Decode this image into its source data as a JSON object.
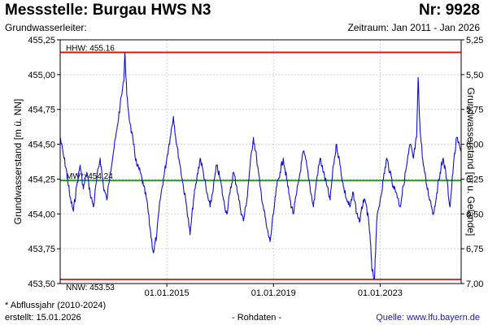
{
  "header": {
    "title": "Messstelle: Burgau HWS N3",
    "number": "Nr: 9928",
    "aquifer": "Grundwasserleiter:",
    "period": "Zeitraum: Jan 2011 - Jan 2026"
  },
  "footer": {
    "note": "* Abflussjahr (2010-2024)",
    "created": "erstellt:  15.01.2026",
    "raw": "- Rohdaten -",
    "source_label": "Quelle: ",
    "source_link": "www.lfu.bayern.de"
  },
  "colors": {
    "series": "#1010d0",
    "limits": "#e01010",
    "mean": "#10a010",
    "grid": "#d0d0d0"
  },
  "chart_data": {
    "type": "line",
    "ylabel": "Grundwasserstand [m ü. NN]",
    "y2label": "Grundwasserstand [m u. Gelände]",
    "ylim": [
      453.5,
      455.25
    ],
    "y_ticks": [
      "453,50",
      "453,75",
      "454,00",
      "454,25",
      "454,50",
      "454,75",
      "455,00",
      "455,25"
    ],
    "y2_ticks": [
      "7,00",
      "6,75",
      "6,50",
      "6,25",
      "6,00",
      "5,75",
      "5,50",
      "5,25"
    ],
    "x_ticks": [
      "01.01.2015",
      "01.01.2019",
      "01.01.2023"
    ],
    "xlim": [
      "2011-01-01",
      "2026-01-15"
    ],
    "grid": true,
    "hlines": [
      {
        "label": "HHW: 455.16",
        "value": 455.16,
        "kind": "limit"
      },
      {
        "label": "MW*: 454.24",
        "value": 454.24,
        "kind": "mean"
      },
      {
        "label": "NNW: 453.53",
        "value": 453.53,
        "kind": "limit"
      }
    ],
    "series": [
      {
        "x": [
          "2011-01-01",
          "2011-02-15",
          "2011-04-01",
          "2011-05-15",
          "2011-07-01",
          "2011-08-15",
          "2011-10-01",
          "2011-11-15",
          "2012-01-01",
          "2012-02-15",
          "2012-04-01",
          "2012-05-15",
          "2012-07-01",
          "2012-08-15",
          "2012-10-01",
          "2012-11-15",
          "2013-01-01",
          "2013-02-15",
          "2013-04-01",
          "2013-05-20",
          "2013-06-05",
          "2013-07-01",
          "2013-08-15",
          "2013-10-01",
          "2013-11-15",
          "2014-01-01",
          "2014-02-15",
          "2014-04-01",
          "2014-05-15",
          "2014-07-01",
          "2014-08-15",
          "2014-10-01",
          "2014-11-15",
          "2015-01-01",
          "2015-02-15",
          "2015-04-01",
          "2015-05-15",
          "2015-07-01",
          "2015-08-15",
          "2015-10-01",
          "2015-11-15",
          "2016-01-01",
          "2016-02-15",
          "2016-04-01",
          "2016-05-15",
          "2016-07-01",
          "2016-08-15",
          "2016-10-01",
          "2016-11-15",
          "2017-01-01",
          "2017-02-15",
          "2017-04-01",
          "2017-05-15",
          "2017-07-01",
          "2017-08-15",
          "2017-10-01",
          "2017-11-15",
          "2018-01-01",
          "2018-02-15",
          "2018-04-01",
          "2018-05-15",
          "2018-07-01",
          "2018-08-15",
          "2018-10-01",
          "2018-11-15",
          "2019-01-01",
          "2019-02-15",
          "2019-04-01",
          "2019-05-15",
          "2019-07-01",
          "2019-08-15",
          "2019-10-01",
          "2019-11-15",
          "2020-01-01",
          "2020-02-15",
          "2020-04-01",
          "2020-05-15",
          "2020-07-01",
          "2020-08-15",
          "2020-10-01",
          "2020-11-15",
          "2021-01-01",
          "2021-02-15",
          "2021-04-01",
          "2021-05-15",
          "2021-07-01",
          "2021-08-15",
          "2021-10-01",
          "2021-11-15",
          "2022-01-01",
          "2022-02-15",
          "2022-04-01",
          "2022-05-15",
          "2022-07-01",
          "2022-08-15",
          "2022-09-10",
          "2022-10-15",
          "2022-11-15",
          "2023-01-01",
          "2023-02-15",
          "2023-04-01",
          "2023-05-15",
          "2023-07-01",
          "2023-08-15",
          "2023-10-01",
          "2023-11-15",
          "2024-01-01",
          "2024-02-15",
          "2024-04-01",
          "2024-05-15",
          "2024-06-05",
          "2024-07-01",
          "2024-08-15",
          "2024-10-01",
          "2024-11-15",
          "2025-01-01",
          "2025-02-15",
          "2025-04-01",
          "2025-05-15",
          "2025-07-01",
          "2025-08-15",
          "2025-10-01",
          "2025-11-15",
          "2026-01-10"
        ],
        "y": [
          454.55,
          454.42,
          454.3,
          454.12,
          454.02,
          454.2,
          454.35,
          454.18,
          454.3,
          454.15,
          454.05,
          454.25,
          454.4,
          454.2,
          454.1,
          454.3,
          454.45,
          454.6,
          454.78,
          454.95,
          455.16,
          454.85,
          454.65,
          454.5,
          454.35,
          454.3,
          454.2,
          454.1,
          453.9,
          453.72,
          453.85,
          454.1,
          454.25,
          454.4,
          454.55,
          454.7,
          454.5,
          454.35,
          454.2,
          454.05,
          453.85,
          454.1,
          454.25,
          454.4,
          454.3,
          454.15,
          454.05,
          454.2,
          454.35,
          454.25,
          454.1,
          454.0,
          454.15,
          454.3,
          454.2,
          454.05,
          453.95,
          454.1,
          454.35,
          454.55,
          454.4,
          454.2,
          454.05,
          453.9,
          453.8,
          454.0,
          454.2,
          454.3,
          454.4,
          454.25,
          454.1,
          454.0,
          454.15,
          454.3,
          454.45,
          454.35,
          454.2,
          454.05,
          454.25,
          454.4,
          454.3,
          454.2,
          454.1,
          454.35,
          454.5,
          454.35,
          454.2,
          454.1,
          454.05,
          454.15,
          454.0,
          453.95,
          454.1,
          454.05,
          453.85,
          453.6,
          453.53,
          453.95,
          454.1,
          454.25,
          454.4,
          454.3,
          454.2,
          454.15,
          454.05,
          454.2,
          454.35,
          454.5,
          454.4,
          454.55,
          454.98,
          454.6,
          454.35,
          454.2,
          454.1,
          454.0,
          454.15,
          454.3,
          454.4,
          454.25,
          454.05,
          454.35,
          454.55,
          454.45
        ]
      }
    ]
  }
}
